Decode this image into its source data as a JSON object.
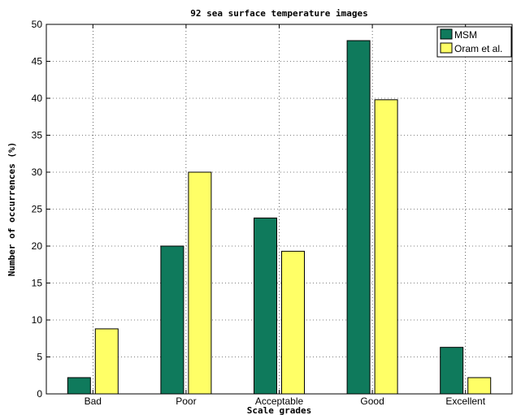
{
  "chart_data": {
    "type": "bar",
    "title": "92 sea surface temperature images",
    "xlabel": "Scale grades",
    "ylabel": "Number of occurrences (%)",
    "categories": [
      "Bad",
      "Poor",
      "Acceptable",
      "Good",
      "Excellent"
    ],
    "ylim": [
      0,
      50
    ],
    "yticks": [
      0,
      5,
      10,
      15,
      20,
      25,
      30,
      35,
      40,
      45,
      50
    ],
    "grid": true,
    "legend_position": "top-right",
    "series": [
      {
        "name": "MSM",
        "color": "#0f7a5c",
        "values": [
          2.2,
          20.0,
          23.8,
          47.8,
          6.3
        ]
      },
      {
        "name": "Oram et al.",
        "color": "#ffff66",
        "values": [
          8.8,
          30.0,
          19.3,
          39.8,
          2.2
        ]
      }
    ]
  }
}
